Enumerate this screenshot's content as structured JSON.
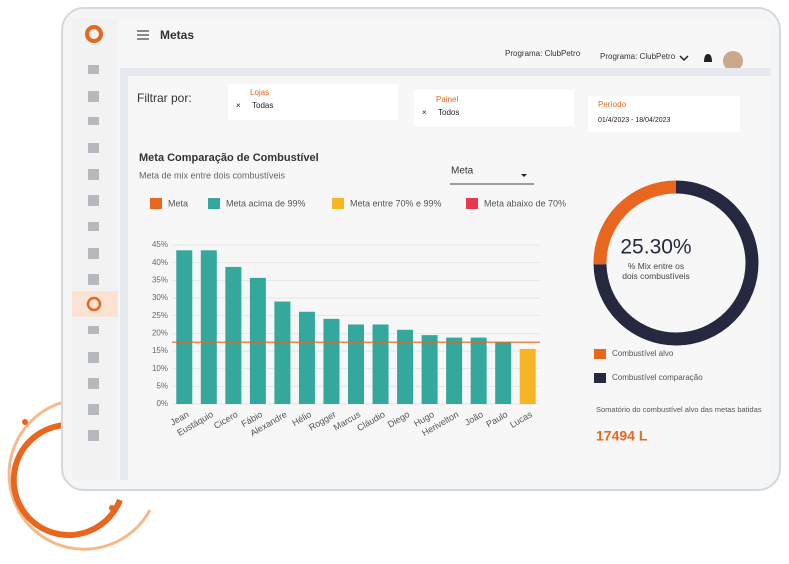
{
  "header": {
    "title": "Metas",
    "program_label": "Programa: ClubPetro",
    "program_select": "Programa: ClubPetro"
  },
  "filters": {
    "label": "Filtrar por:",
    "items": [
      {
        "title": "Lojas",
        "value": "Todas"
      },
      {
        "title": "Painel",
        "value": "Todos"
      },
      {
        "title": "Período",
        "value": "01/4/2023 - 18/04/2023"
      }
    ]
  },
  "chart_data": [
    {
      "type": "bar",
      "title": "Meta Comparação de Combustível",
      "subtitle": "Meta de mix entre dois combustíveis",
      "selector": "Meta",
      "categories": [
        "Jean",
        "Eustáquio",
        "Cicero",
        "Fábio",
        "Alexandre",
        "Hélio",
        "Rogger",
        "Marcus",
        "Cláudio",
        "Diego",
        "Hugo",
        "Herivelton",
        "João",
        "Paulo",
        "Lucas"
      ],
      "values": [
        43.5,
        43.5,
        38.8,
        35.7,
        29,
        26.1,
        24.1,
        22.5,
        22.5,
        21,
        19.5,
        18.8,
        18.8,
        17.4,
        15.6
      ],
      "bar_colors": [
        "#35a89d",
        "#35a89d",
        "#35a89d",
        "#35a89d",
        "#35a89d",
        "#35a89d",
        "#35a89d",
        "#35a89d",
        "#35a89d",
        "#35a89d",
        "#35a89d",
        "#35a89d",
        "#35a89d",
        "#35a89d",
        "#f5b625"
      ],
      "meta": 17.5,
      "legend": [
        {
          "name": "Meta",
          "color": "#e8661e"
        },
        {
          "name": "Meta acima de 99%",
          "color": "#35a89d"
        },
        {
          "name": "Meta entre 70% e 99%",
          "color": "#f5b625"
        },
        {
          "name": "Meta abaixo de 70%",
          "color": "#e8384f"
        }
      ],
      "ylim": [
        0,
        45
      ],
      "yticks": [
        {
          "value": 0,
          "label": "0%"
        },
        {
          "value": 5,
          "label": "5%"
        },
        {
          "value": 10,
          "label": "10%"
        },
        {
          "value": 15,
          "label": "15%"
        },
        {
          "value": 20,
          "label": "20%"
        },
        {
          "value": 25,
          "label": "25%"
        },
        {
          "value": 30,
          "label": "30%"
        },
        {
          "value": 35,
          "label": "35%"
        },
        {
          "value": 40,
          "label": "40%"
        },
        {
          "value": 45,
          "label": "45%"
        }
      ],
      "grid": true
    },
    {
      "type": "donut",
      "value": 25.3,
      "value_label": "25.30%",
      "subtitle": "% Mix entre os dois combustíveis",
      "series": [
        {
          "name": "Combustível alvo",
          "color": "#e8661e"
        },
        {
          "name": "Combustível comparação",
          "color": "#262840"
        }
      ]
    }
  ],
  "summary": {
    "label": "Somatório do combustível alvo das metas batidas",
    "value": "17494 L"
  }
}
